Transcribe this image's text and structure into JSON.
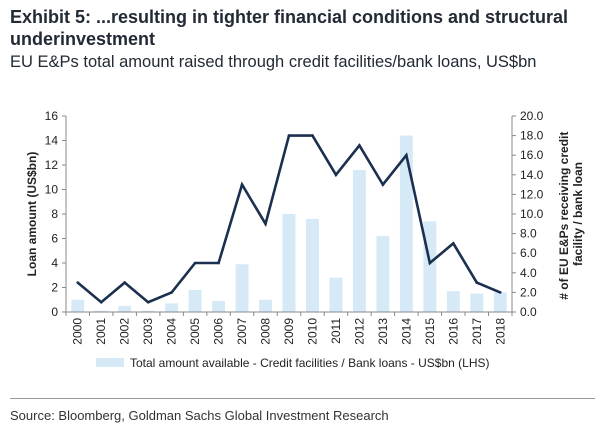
{
  "header": {
    "title": "Exhibit 5: ...resulting in tighter financial conditions and structural underinvestment",
    "subtitle": "EU E&Ps total amount raised through credit facilities/bank loans, US$bn"
  },
  "footer": {
    "source": "Source: Bloomberg, Goldman Sachs Global Investment Research"
  },
  "colors": {
    "bar": "#d6e9f7",
    "line": "#1b2f4e",
    "axis": "#888888",
    "text": "#222222"
  },
  "chart_data": {
    "type": "bar+line",
    "categories": [
      "2000",
      "2001",
      "2002",
      "2003",
      "2004",
      "2005",
      "2006",
      "2007",
      "2008",
      "2009",
      "2010",
      "2011",
      "2012",
      "2013",
      "2014",
      "2015",
      "2016",
      "2017",
      "2018"
    ],
    "series": [
      {
        "name": "Total amount available - Credit facilities / Bank loans - US$bn (LHS)",
        "type": "bar",
        "axis": "left",
        "values": [
          1.0,
          0.1,
          0.5,
          0.1,
          0.7,
          1.8,
          0.9,
          3.9,
          1.0,
          8.0,
          7.6,
          2.8,
          11.6,
          6.2,
          14.4,
          7.4,
          1.7,
          1.5,
          1.6
        ]
      },
      {
        "name": "# of EU E&Ps receiving credit facility / bank loan",
        "type": "line",
        "axis": "right",
        "values": [
          3,
          1,
          3,
          1,
          2,
          5,
          5,
          13,
          9,
          18,
          18,
          14,
          17,
          13,
          16,
          5,
          7,
          3,
          2
        ]
      }
    ],
    "ylabel": "Loan amount (US$bn)",
    "y2label": "# of EU E&Ps receiving credit facility / bank loan",
    "ylim": [
      0,
      16
    ],
    "y2lim": [
      0,
      20
    ],
    "yticks": [
      "0",
      "2",
      "4",
      "6",
      "8",
      "10",
      "12",
      "14",
      "16"
    ],
    "y2ticks": [
      "0.0",
      "2.0",
      "4.0",
      "6.0",
      "8.0",
      "10.0",
      "12.0",
      "14.0",
      "16.0",
      "18.0",
      "20.0"
    ],
    "legend_label": "Total amount available - Credit facilities / Bank loans - US$bn (LHS)",
    "legend_position": "bottom"
  }
}
